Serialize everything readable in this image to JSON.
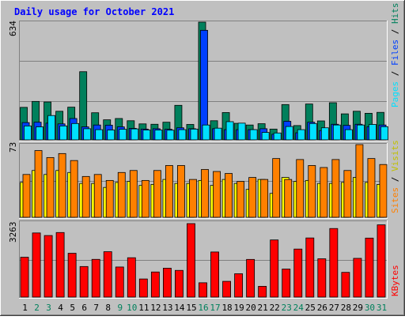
{
  "title": "Daily usage for October 2021",
  "colors": {
    "background": "#c0c0c0",
    "title": "#0000ff",
    "hits": "#00805c",
    "files": "#0040ff",
    "pages": "#00e0ff",
    "visits": "#ffff00",
    "sites": "#ff8000",
    "kbytes": "#ff0000",
    "weekend_label": "#00805c",
    "weekday_label": "#000000"
  },
  "chart_data": [
    {
      "type": "bar",
      "name": "hits-files-pages",
      "ymax_label": "634",
      "ylim": [
        0,
        634
      ],
      "series": [
        {
          "name": "Hits",
          "values": [
            175,
            207,
            204,
            154,
            176,
            367,
            146,
            108,
            115,
            103,
            86,
            84,
            95,
            186,
            83,
            634,
            103,
            147,
            89,
            80,
            87,
            58,
            190,
            77,
            193,
            102,
            200,
            140,
            154,
            143,
            148
          ]
        },
        {
          "name": "Files",
          "values": [
            93,
            95,
            90,
            86,
            115,
            70,
            80,
            79,
            70,
            62,
            58,
            60,
            57,
            65,
            60,
            590,
            60,
            55,
            55,
            55,
            60,
            30,
            100,
            38,
            95,
            50,
            84,
            78,
            84,
            71,
            80
          ]
        },
        {
          "name": "Pages",
          "values": [
            75,
            70,
            131,
            75,
            88,
            60,
            55,
            53,
            57,
            59,
            53,
            53,
            52,
            55,
            58,
            80,
            63,
            98,
            90,
            55,
            40,
            37,
            72,
            55,
            88,
            65,
            80,
            55,
            80,
            83,
            71
          ]
        }
      ],
      "legend": [
        "Pages",
        "Files",
        "Hits"
      ]
    },
    {
      "type": "bar",
      "name": "visits-sites",
      "ymax_label": "73",
      "ylim": [
        0,
        73
      ],
      "series": [
        {
          "name": "Visits",
          "values": [
            35,
            47,
            43,
            47,
            45,
            34,
            34,
            30,
            35,
            36,
            32,
            33,
            38,
            34,
            34,
            37,
            32,
            38,
            34,
            28,
            38,
            24,
            40,
            36,
            37,
            34,
            34,
            35,
            40,
            35,
            33
          ]
        },
        {
          "name": "Sites",
          "values": [
            43,
            67,
            60,
            64,
            57,
            41,
            43,
            37,
            45,
            47,
            37,
            47,
            52,
            52,
            38,
            48,
            46,
            44,
            36,
            40,
            38,
            59,
            38,
            58,
            52,
            50,
            58,
            47,
            73,
            59,
            53
          ]
        }
      ],
      "legend": [
        "Sites",
        "Visits"
      ]
    },
    {
      "type": "bar",
      "name": "kbytes",
      "ymax_label": "3263",
      "ylim": [
        0,
        3263
      ],
      "series": [
        {
          "name": "KBytes",
          "values": [
            1770,
            2848,
            2734,
            2867,
            1946,
            1357,
            1675,
            2016,
            1336,
            1748,
            804,
            1115,
            1284,
            1185,
            3263,
            636,
            2003,
            699,
            1037,
            1673,
            478,
            2538,
            1245,
            2133,
            2626,
            1701,
            3045,
            1098,
            1720,
            2620,
            3209
          ]
        }
      ],
      "legend": [
        "KBytes"
      ]
    }
  ],
  "x_labels": [
    "1",
    "2",
    "3",
    "4",
    "5",
    "6",
    "7",
    "8",
    "9",
    "10",
    "11",
    "12",
    "13",
    "14",
    "15",
    "16",
    "17",
    "18",
    "19",
    "20",
    "21",
    "22",
    "23",
    "24",
    "25",
    "26",
    "27",
    "28",
    "29",
    "30",
    "31"
  ],
  "weekend_days": [
    2,
    3,
    9,
    10,
    16,
    17,
    23,
    24,
    30,
    31
  ],
  "legend_text": {
    "top": [
      {
        "text": "Pages",
        "color": "#00e0ff"
      },
      {
        "text": " / ",
        "color": "#000000"
      },
      {
        "text": "Files",
        "color": "#0040ff"
      },
      {
        "text": " / ",
        "color": "#000000"
      },
      {
        "text": "Hits",
        "color": "#00805c"
      }
    ],
    "mid": [
      {
        "text": "Sites",
        "color": "#ff8000"
      },
      {
        "text": " / ",
        "color": "#000000"
      },
      {
        "text": "Visits",
        "color": "#c0c000"
      }
    ],
    "bot": [
      {
        "text": "KBytes",
        "color": "#ff0000"
      }
    ]
  }
}
